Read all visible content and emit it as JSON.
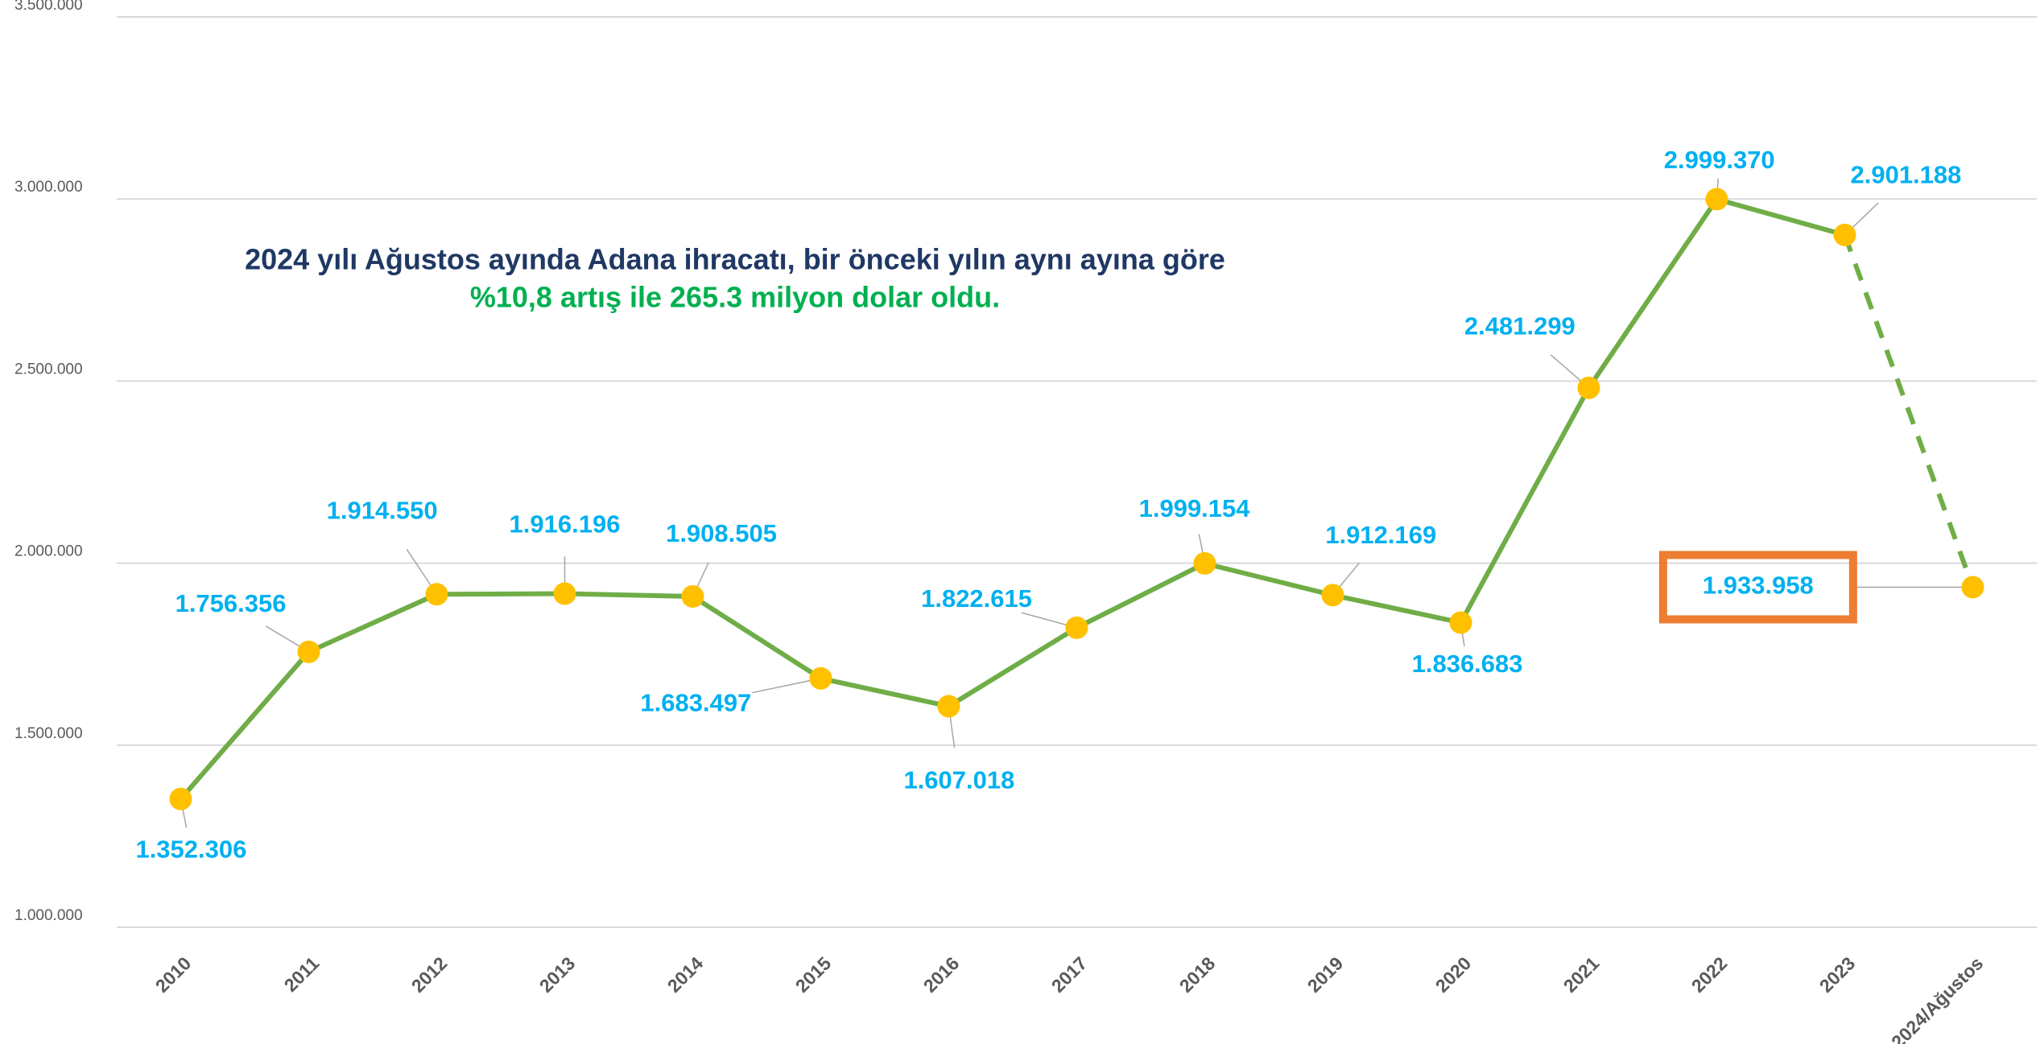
{
  "chart_data": {
    "type": "line",
    "annotations": [
      "2024 yılı Ağustos ayında Adana ihracatı, bir önceki yılın aynı ayına göre",
      "%10,8 artış ile 265.3 milyon dolar oldu."
    ],
    "categories": [
      "2010",
      "2011",
      "2012",
      "2013",
      "2014",
      "2015",
      "2016",
      "2017",
      "2018",
      "2019",
      "2020",
      "2021",
      "2022",
      "2023",
      "2024/Ağustos"
    ],
    "series": [
      {
        "color": "#70ad47",
        "marker_color": "#ffc000",
        "label_color": "#00b0f0",
        "values": [
          1352306,
          1756356,
          1914550,
          1916196,
          1908505,
          1683497,
          1607018,
          1822615,
          1999154,
          1912169,
          1836683,
          2481299,
          2999370,
          2901188,
          1933958
        ],
        "value_labels": [
          "1.352.306",
          "1.756.356",
          "1.914.550",
          "1.916.196",
          "1.908.505",
          "1.683.497",
          "1.607.018",
          "1.822.615",
          "1.999.154",
          "1.912.169",
          "1.836.683",
          "2.481.299",
          "2.999.370",
          "2.901.188",
          "1.933.958"
        ],
        "dashed_segments": [
          13
        ],
        "highlight_index": 14,
        "highlight_color": "#ed7d31"
      }
    ],
    "ylim": [
      1000000,
      3500000
    ],
    "yticks": [
      {
        "value": 1000000,
        "label": "1.000.000"
      },
      {
        "value": 1500000,
        "label": "1.500.000"
      },
      {
        "value": 2000000,
        "label": "2.000.000"
      },
      {
        "value": 2500000,
        "label": "2.500.000"
      },
      {
        "value": 3000000,
        "label": "3.000.000"
      },
      {
        "value": 3500000,
        "label": "3.500.000"
      }
    ],
    "grid": true
  }
}
